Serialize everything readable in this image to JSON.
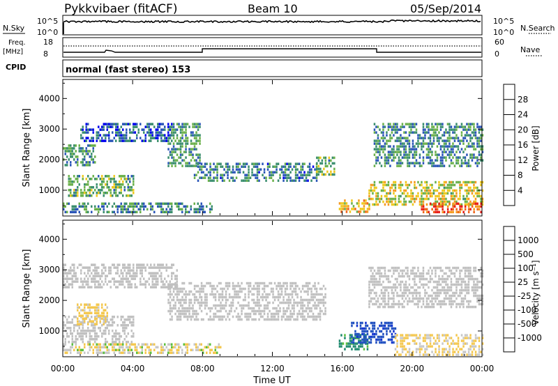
{
  "header": {
    "station": "Pykkvibaer (fitACF)",
    "beam": "Beam 10",
    "date": "05/Sep/2014"
  },
  "status_panels": {
    "nsky_label": "N.Sky",
    "nsky_tick_top": "10^5",
    "nsky_tick_bottom": "10^0",
    "nsearch_label": "N.Search",
    "nsearch_tick_top": "10^5",
    "nsearch_tick_bottom": "10^0",
    "freq_label": "Freq.",
    "freq_unit": "[MHz]",
    "freq_tick_top": "18",
    "freq_tick_bottom": "8",
    "nave_label": "Nave",
    "nave_tick_top": "60",
    "nave_tick_bottom": "0",
    "cpid_label": "CPID",
    "cpid_text": "normal (fast stereo) 153"
  },
  "colors": {
    "power_scale": [
      "#0000ee",
      "#2a55b8",
      "#3a8e6e",
      "#6ab04a",
      "#eec81c",
      "#f59a1e",
      "#f0641a",
      "#e81c16"
    ],
    "velocity_scale": [
      "#e60000",
      "#f07010",
      "#f4a830",
      "#f4c850",
      "#c8c8c8",
      "#c8c8c8",
      "#5cc040",
      "#208a70",
      "#2050c0",
      "#1030d0"
    ],
    "ground_scatter": "#c0c0c0"
  },
  "chart_data": [
    {
      "type": "heatmap",
      "title": "Power",
      "xlabel": "",
      "ylabel": "Slant Range [km]",
      "x_ticks": [
        "00:00",
        "04:00",
        "08:00",
        "12:00",
        "16:00",
        "20:00",
        "00:00"
      ],
      "y_ticks": [
        1000,
        2000,
        3000,
        4000
      ],
      "ylim": [
        180,
        4600
      ],
      "xlim_hours": [
        0,
        24
      ],
      "colorbar_label": "Power [dB]",
      "colorbar_ticks": [
        4,
        8,
        12,
        16,
        20,
        24,
        28
      ],
      "colorbar_range": [
        0,
        30
      ],
      "echo_regions": [
        {
          "start_h": 0.0,
          "end_h": 1.8,
          "range_lo": 1800,
          "range_hi": 2500,
          "level": 10
        },
        {
          "start_h": 1.0,
          "end_h": 6.2,
          "range_lo": 2600,
          "range_hi": 3200,
          "level": 6
        },
        {
          "start_h": 0.3,
          "end_h": 4.0,
          "range_lo": 800,
          "range_hi": 1500,
          "level": 12
        },
        {
          "start_h": 0.0,
          "end_h": 8.5,
          "range_lo": 250,
          "range_hi": 600,
          "level": 9
        },
        {
          "start_h": 6.0,
          "end_h": 7.8,
          "range_lo": 1800,
          "range_hi": 3200,
          "level": 10
        },
        {
          "start_h": 7.5,
          "end_h": 14.5,
          "range_lo": 1300,
          "range_hi": 1900,
          "level": 8
        },
        {
          "start_h": 14.5,
          "end_h": 15.5,
          "range_lo": 1500,
          "range_hi": 2100,
          "level": 12
        },
        {
          "start_h": 15.8,
          "end_h": 17.5,
          "range_lo": 250,
          "range_hi": 700,
          "level": 19
        },
        {
          "start_h": 17.8,
          "end_h": 24.0,
          "range_lo": 1800,
          "range_hi": 3200,
          "level": 9
        },
        {
          "start_h": 17.5,
          "end_h": 24.0,
          "range_lo": 500,
          "range_hi": 1300,
          "level": 16
        },
        {
          "start_h": 20.5,
          "end_h": 24.0,
          "range_lo": 250,
          "range_hi": 600,
          "level": 26
        }
      ]
    },
    {
      "type": "heatmap",
      "title": "Velocity",
      "xlabel": "Time UT",
      "ylabel": "Slant Range [km]",
      "x_ticks": [
        "00:00",
        "04:00",
        "08:00",
        "12:00",
        "16:00",
        "20:00",
        "00:00"
      ],
      "y_ticks": [
        1000,
        2000,
        3000,
        4000
      ],
      "ylim": [
        180,
        4600
      ],
      "xlim_hours": [
        0,
        24
      ],
      "colorbar_label": "Velocity [m s⁻¹]",
      "colorbar_ticks": [
        1000,
        500,
        100,
        25,
        -25,
        -100,
        -500,
        -1000
      ],
      "echo_regions": [
        {
          "start_h": 0.0,
          "end_h": 6.5,
          "range_lo": 2400,
          "range_hi": 3200,
          "velocity": 0,
          "ground_scatter": true
        },
        {
          "start_h": 6.0,
          "end_h": 15.0,
          "range_lo": 1400,
          "range_hi": 2600,
          "velocity": 0,
          "ground_scatter": true
        },
        {
          "start_h": 0.0,
          "end_h": 4.0,
          "range_lo": 600,
          "range_hi": 1500,
          "velocity": 0,
          "ground_scatter": true
        },
        {
          "start_h": 0.8,
          "end_h": 2.5,
          "range_lo": 1200,
          "range_hi": 1900,
          "velocity": -200
        },
        {
          "start_h": 0.0,
          "end_h": 9.0,
          "range_lo": 250,
          "range_hi": 600,
          "velocity": -80
        },
        {
          "start_h": 15.8,
          "end_h": 17.5,
          "range_lo": 400,
          "range_hi": 900,
          "velocity": 200
        },
        {
          "start_h": 16.5,
          "end_h": 19.0,
          "range_lo": 600,
          "range_hi": 1300,
          "velocity": 900
        },
        {
          "start_h": 17.5,
          "end_h": 24.0,
          "range_lo": 1800,
          "range_hi": 3100,
          "velocity": 0,
          "ground_scatter": true
        },
        {
          "start_h": 19.0,
          "end_h": 24.0,
          "range_lo": 250,
          "range_hi": 900,
          "velocity": -150
        }
      ]
    }
  ]
}
